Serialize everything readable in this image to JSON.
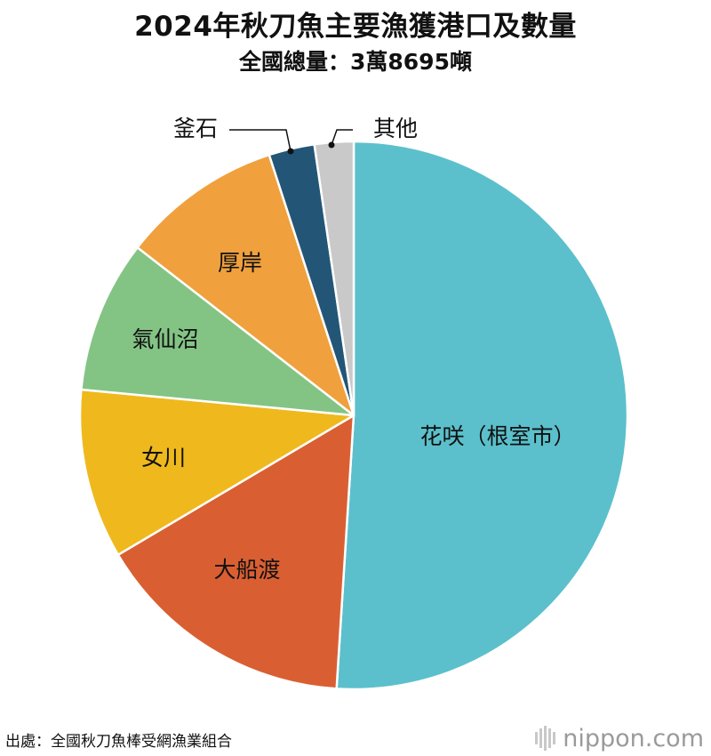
{
  "header": {
    "title": "2024年秋刀魚主要漁獲港口及數量",
    "subtitle": "全國總量：3萬8695噸"
  },
  "footer": {
    "source": "出處：全國秋刀魚棒受網漁業組合",
    "brand_name": "nippon",
    "brand_suffix": ".com"
  },
  "chart_data": {
    "type": "pie",
    "title": "2024年秋刀魚主要漁獲港口及數量",
    "subtitle": "全國總量：3萬8695噸",
    "start": "12 o'clock",
    "direction": "clockwise",
    "slices": [
      {
        "label": "花咲（根室市）",
        "value": 51.0,
        "color": "#5bc0cb"
      },
      {
        "label": "大船渡",
        "value": 15.5,
        "color": "#d95f32"
      },
      {
        "label": "女川",
        "value": 10.0,
        "color": "#efb91d"
      },
      {
        "label": "氣仙沼",
        "value": 9.0,
        "color": "#83c485"
      },
      {
        "label": "厚岸",
        "value": 9.5,
        "color": "#f0a03d"
      },
      {
        "label": "釜石",
        "value": 2.7,
        "color": "#235676"
      },
      {
        "label": "其他",
        "value": 2.3,
        "color": "#c9c9c9"
      }
    ]
  }
}
